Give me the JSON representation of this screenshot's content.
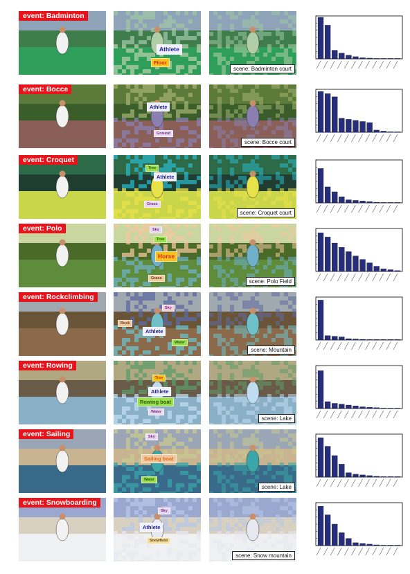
{
  "rows": [
    {
      "event_label": "event: Badminton",
      "scene_label": "scene: Badminton court",
      "labels": [
        {
          "text": "Athlete",
          "bg": "#eef0ff",
          "fg": "#1c1a8c",
          "x": 62,
          "y": 48,
          "size": "big"
        },
        {
          "text": "Floor",
          "bg": "#f7c31a",
          "fg": "#e02020",
          "x": 54,
          "y": 68,
          "size": "normal"
        }
      ],
      "colors": {
        "sky": "#8fa3b8",
        "mid": "#3f7d4c",
        "ground": "#2f9e5a",
        "seg2": "#9fc6a6",
        "seg3": "#b0cfa8"
      },
      "chart_data": {
        "type": "bar",
        "values": [
          0.58,
          0.47,
          0.12,
          0.08,
          0.05,
          0.03,
          0.015,
          0.01,
          0.005,
          0.003,
          0.002,
          0.001
        ],
        "ylim": [
          0,
          0.6
        ]
      }
    },
    {
      "event_label": "event: Bocce",
      "scene_label": "scene: Bocce court",
      "labels": [
        {
          "text": "Athlete",
          "bg": "#eef0ff",
          "fg": "#1c1a8c",
          "x": 48,
          "y": 26,
          "size": "normal"
        },
        {
          "text": "Ground",
          "bg": "#e8d8f0",
          "fg": "#7a2a8a",
          "x": 58,
          "y": 66,
          "size": "tiny"
        }
      ],
      "colors": {
        "sky": "#5c7a3a",
        "mid": "#3a5d2a",
        "ground": "#8a5f58",
        "seg2": "#a0b070",
        "seg3": "#8a7fb0"
      },
      "chart_data": {
        "type": "bar",
        "values": [
          0.38,
          0.36,
          0.33,
          0.13,
          0.12,
          0.11,
          0.1,
          0.09,
          0.02,
          0.01,
          0.005,
          0.002
        ],
        "ylim": [
          0,
          0.4
        ]
      }
    },
    {
      "event_label": "event: Croquet",
      "scene_label": "scene: Croquet court",
      "labels": [
        {
          "text": "Tree",
          "bg": "#9be04a",
          "fg": "#225a10",
          "x": 46,
          "y": 14,
          "size": "tiny"
        },
        {
          "text": "Athlete",
          "bg": "#eef0ff",
          "fg": "#1c1a8c",
          "x": 58,
          "y": 25,
          "size": "normal"
        },
        {
          "text": "Grass",
          "bg": "#e8d8f0",
          "fg": "#7a2a8a",
          "x": 44,
          "y": 66,
          "size": "tiny"
        }
      ],
      "colors": {
        "sky": "#2c6a48",
        "mid": "#1f3d30",
        "ground": "#c9d64a",
        "seg2": "#29b6c6",
        "seg3": "#e8e24a"
      },
      "chart_data": {
        "type": "bar",
        "values": [
          0.56,
          0.26,
          0.18,
          0.1,
          0.05,
          0.04,
          0.03,
          0.02,
          0.01,
          0.005,
          0.002,
          0.001
        ],
        "ylim": [
          0,
          0.7
        ]
      }
    },
    {
      "event_label": "event: Polo",
      "scene_label": "scene: Polo Field",
      "labels": [
        {
          "text": "Sky",
          "bg": "#e8d8f0",
          "fg": "#7a2a8a",
          "x": 52,
          "y": 4,
          "size": "tiny"
        },
        {
          "text": "Tree",
          "bg": "#9be04a",
          "fg": "#225a10",
          "x": 58,
          "y": 18,
          "size": "tiny"
        },
        {
          "text": "Horse",
          "bg": "#f7c31a",
          "fg": "#e02020",
          "x": 60,
          "y": 40,
          "size": "big"
        },
        {
          "text": "Grass",
          "bg": "#f0c8a0",
          "fg": "#6a3a1a",
          "x": 50,
          "y": 74,
          "size": "tiny"
        }
      ],
      "colors": {
        "sky": "#c9d6a0",
        "mid": "#4a6a2a",
        "ground": "#5e8c3a",
        "seg2": "#f2c7a0",
        "seg3": "#6fb0c8"
      },
      "chart_data": {
        "type": "bar",
        "values": [
          0.45,
          0.4,
          0.33,
          0.28,
          0.23,
          0.18,
          0.14,
          0.1,
          0.06,
          0.03,
          0.02,
          0.01
        ],
        "ylim": [
          0,
          0.5
        ]
      }
    },
    {
      "event_label": "event: Rockclimbing",
      "scene_label": "scene: Mountain",
      "labels": [
        {
          "text": "Sky",
          "bg": "#f2d0dc",
          "fg": "#7a2a8a",
          "x": 70,
          "y": 18,
          "size": "tiny"
        },
        {
          "text": "Rock",
          "bg": "#f0c8a0",
          "fg": "#6a3a1a",
          "x": 6,
          "y": 40,
          "size": "tiny"
        },
        {
          "text": "Athlete",
          "bg": "#eef0ff",
          "fg": "#1c1a8c",
          "x": 42,
          "y": 50,
          "size": "normal"
        },
        {
          "text": "Water",
          "bg": "#9be04a",
          "fg": "#225a10",
          "x": 84,
          "y": 68,
          "size": "tiny"
        }
      ],
      "colors": {
        "sky": "#a0a8b0",
        "mid": "#6a5438",
        "ground": "#8a6a4a",
        "seg2": "#5e6aa0",
        "seg3": "#6fc0c8"
      },
      "chart_data": {
        "type": "bar",
        "values": [
          0.65,
          0.07,
          0.06,
          0.05,
          0.02,
          0.015,
          0.01,
          0.005,
          0.003,
          0.002,
          0.001,
          0.001
        ],
        "ylim": [
          0,
          0.7
        ]
      }
    },
    {
      "event_label": "event: Rowing",
      "scene_label": "scene: Lake",
      "labels": [
        {
          "text": "Tree",
          "bg": "#f7c31a",
          "fg": "#e02020",
          "x": 56,
          "y": 20,
          "size": "tiny"
        },
        {
          "text": "Athlete",
          "bg": "#eef0ff",
          "fg": "#1c1a8c",
          "x": 50,
          "y": 38,
          "size": "normal"
        },
        {
          "text": "Rowing boat",
          "bg": "#9be04a",
          "fg": "#225a10",
          "x": 34,
          "y": 53,
          "size": "normal"
        },
        {
          "text": "Water",
          "bg": "#e8d8f0",
          "fg": "#7a2a8a",
          "x": 50,
          "y": 69,
          "size": "tiny"
        }
      ],
      "colors": {
        "sky": "#b0a880",
        "mid": "#6a5a48",
        "ground": "#8ab0c8",
        "seg2": "#5e9c6a",
        "seg3": "#c0dcf0"
      },
      "chart_data": {
        "type": "bar",
        "values": [
          0.44,
          0.08,
          0.06,
          0.05,
          0.04,
          0.03,
          0.02,
          0.015,
          0.01,
          0.005,
          0.003,
          0.001
        ],
        "ylim": [
          0,
          0.5
        ]
      }
    },
    {
      "event_label": "event: Sailing",
      "scene_label": "scene: Lake",
      "labels": [
        {
          "text": "Sky",
          "bg": "#e8d8f0",
          "fg": "#7a2a8a",
          "x": 46,
          "y": 6,
          "size": "tiny"
        },
        {
          "text": "Sailing boat",
          "bg": "#f0c8a0",
          "fg": "#e06a1a",
          "x": 40,
          "y": 36,
          "size": "normal"
        },
        {
          "text": "Water",
          "bg": "#9be04a",
          "fg": "#225a10",
          "x": 40,
          "y": 68,
          "size": "tiny"
        }
      ],
      "colors": {
        "sky": "#9aa6b6",
        "mid": "#c8b490",
        "ground": "#3a6a8a",
        "seg2": "#c8c890",
        "seg3": "#3aa6a8"
      },
      "chart_data": {
        "type": "bar",
        "values": [
          0.55,
          0.43,
          0.3,
          0.18,
          0.06,
          0.04,
          0.03,
          0.02,
          0.01,
          0.005,
          0.003,
          0.001
        ],
        "ylim": [
          0,
          0.6
        ]
      }
    },
    {
      "event_label": "event: Snowboarding",
      "scene_label": "scene: Snow mountain",
      "labels": [
        {
          "text": "Sky",
          "bg": "#e8d8f0",
          "fg": "#7a2a8a",
          "x": 64,
          "y": 14,
          "size": "tiny"
        },
        {
          "text": "Athlete",
          "bg": "#eef0ff",
          "fg": "#1c1a8c",
          "x": 38,
          "y": 36,
          "size": "normal"
        },
        {
          "text": "Snowfield",
          "bg": "#f0e0a0",
          "fg": "#6a3a1a",
          "x": 48,
          "y": 57,
          "size": "tiny"
        }
      ],
      "colors": {
        "sky": "#9aa8d0",
        "mid": "#d8d0c0",
        "ground": "#eef0f2",
        "seg2": "#b8c8e8",
        "seg3": "#e8e8f0"
      },
      "chart_data": {
        "type": "bar",
        "values": [
          0.55,
          0.43,
          0.3,
          0.18,
          0.1,
          0.04,
          0.03,
          0.02,
          0.01,
          0.005,
          0.003,
          0.001
        ],
        "ylim": [
          0,
          0.6
        ]
      }
    }
  ]
}
